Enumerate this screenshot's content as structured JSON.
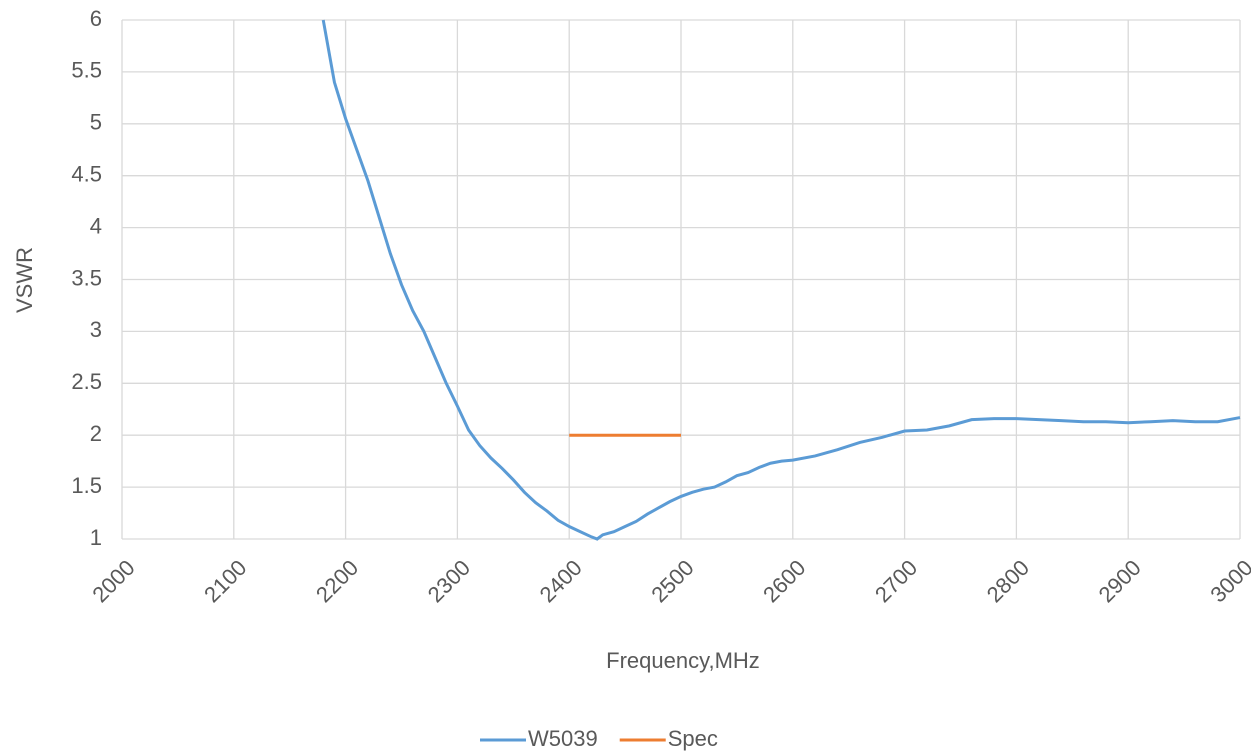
{
  "chart_data": {
    "type": "line",
    "xlabel": "Frequency,MHz",
    "ylabel": "VSWR",
    "xlim": [
      2000,
      3000
    ],
    "xticks": [
      2000,
      2100,
      2200,
      2300,
      2400,
      2500,
      2600,
      2700,
      2800,
      2900,
      3000
    ],
    "ylim": [
      1,
      6
    ],
    "yticks": [
      1,
      1.5,
      2,
      2.5,
      3,
      3.5,
      4,
      4.5,
      5,
      5.5,
      6
    ],
    "grid": true,
    "legend": "bottom",
    "series": [
      {
        "name": "W5039",
        "color": "#5b9bd5",
        "x": [
          2180,
          2190,
          2200,
          2210,
          2220,
          2230,
          2240,
          2250,
          2260,
          2270,
          2280,
          2290,
          2300,
          2310,
          2320,
          2330,
          2340,
          2350,
          2360,
          2370,
          2380,
          2390,
          2400,
          2410,
          2420,
          2425,
          2430,
          2440,
          2450,
          2460,
          2470,
          2480,
          2490,
          2500,
          2510,
          2520,
          2530,
          2540,
          2550,
          2560,
          2570,
          2580,
          2590,
          2600,
          2620,
          2640,
          2660,
          2680,
          2700,
          2720,
          2740,
          2760,
          2780,
          2800,
          2820,
          2840,
          2860,
          2880,
          2900,
          2920,
          2940,
          2960,
          2980,
          3000
        ],
        "values": [
          6,
          5.4,
          5.05,
          4.75,
          4.45,
          4.1,
          3.75,
          3.45,
          3.2,
          3.0,
          2.75,
          2.5,
          2.28,
          2.05,
          1.9,
          1.78,
          1.68,
          1.57,
          1.45,
          1.35,
          1.27,
          1.18,
          1.12,
          1.07,
          1.02,
          1.0,
          1.04,
          1.07,
          1.12,
          1.17,
          1.24,
          1.3,
          1.36,
          1.41,
          1.45,
          1.48,
          1.5,
          1.55,
          1.61,
          1.64,
          1.69,
          1.73,
          1.75,
          1.76,
          1.8,
          1.86,
          1.93,
          1.98,
          2.04,
          2.05,
          2.09,
          2.15,
          2.16,
          2.16,
          2.15,
          2.14,
          2.13,
          2.13,
          2.12,
          2.13,
          2.14,
          2.13,
          2.13,
          2.17
        ]
      },
      {
        "name": "Spec",
        "color": "#ed7d31",
        "x": [
          2400,
          2500
        ],
        "values": [
          2,
          2
        ]
      }
    ]
  }
}
